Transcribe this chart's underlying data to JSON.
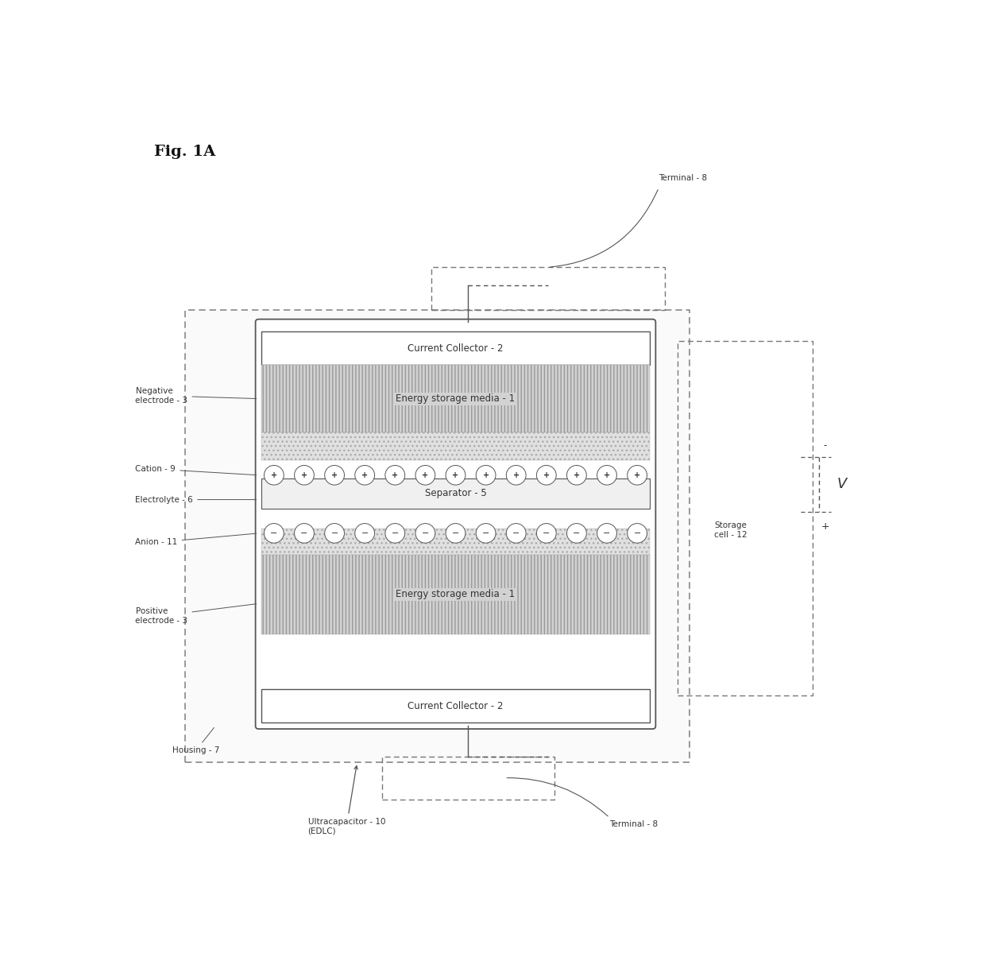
{
  "fig_label": "Fig. 1A",
  "background_color": "#ffffff",
  "fig_size": [
    12.4,
    11.99
  ],
  "dpi": 100,
  "labels": {
    "terminal_8_top": "Terminal - 8",
    "terminal_8_bottom": "Terminal - 8",
    "current_collector_2_top": "Current Collector - 2",
    "current_collector_2_bottom": "Current Collector - 2",
    "energy_storage_1_top": "Energy storage media - 1",
    "energy_storage_1_bottom": "Energy storage media - 1",
    "separator_5": "Separator - 5",
    "negative_electrode_3": "Negative\nelectrode - 3",
    "positive_electrode_3": "Positive\nelectrode - 3",
    "cation_9": "Cation - 9",
    "anion_11": "Anion - 11",
    "electrolyte_6": "Electrolyte - 6",
    "housing_7": "Housing - 7",
    "storage_cell_12": "Storage\ncell - 12",
    "v_label": "V",
    "ultracapacitor_10": "Ultracapacitor - 10\n(EDLC)"
  },
  "colors": {
    "box_border": "#555555",
    "dashed_border": "#666666",
    "hatched_fill": "#cccccc",
    "separator_fill": "#f0f0f0",
    "white": "#ffffff",
    "text": "#333333",
    "dark_text": "#333333"
  }
}
